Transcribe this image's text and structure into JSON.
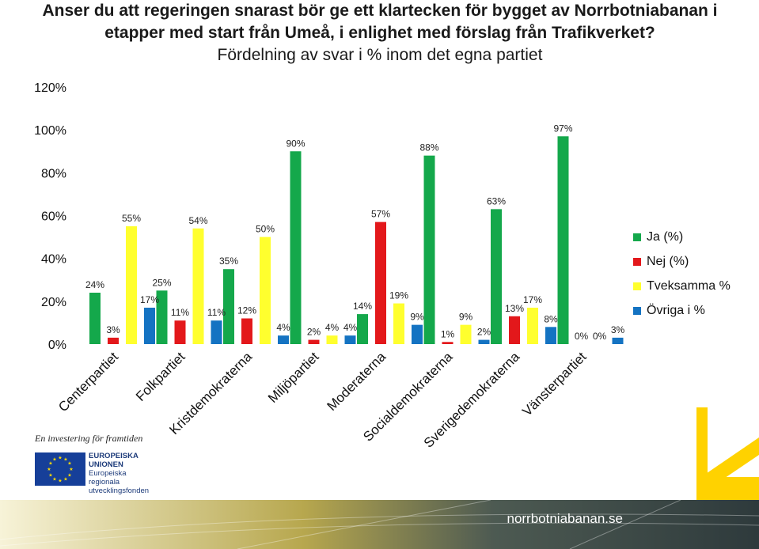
{
  "chart_data": {
    "type": "bar",
    "title": "Anser du att regeringen snarast bör ge ett klartecken för bygget av Norrbotniabanan i etapper med start från Umeå, i enlighet med förslag från Trafikverket?",
    "subtitle": "Fördelning av svar i % inom det egna partiet",
    "categories": [
      "Centerpartiet",
      "Folkpartiet",
      "Kristdemokraterna",
      "Miljöpartiet",
      "Moderaterna",
      "Socialdemokraterna",
      "Sverigedemokraterna",
      "Vänsterpartiet"
    ],
    "series": [
      {
        "name": "Ja (%)",
        "color": "#14a84b",
        "values": [
          24,
          25,
          35,
          90,
          14,
          88,
          63,
          97
        ]
      },
      {
        "name": "Nej (%)",
        "color": "#e3181b",
        "values": [
          3,
          11,
          12,
          2,
          57,
          1,
          13,
          0
        ]
      },
      {
        "name": "Tveksamma %",
        "color": "#ffff2e",
        "values": [
          55,
          54,
          50,
          4,
          19,
          9,
          17,
          0
        ]
      },
      {
        "name": "Övriga i %",
        "color": "#1473c2",
        "values": [
          17,
          11,
          4,
          4,
          9,
          2,
          8,
          3
        ]
      }
    ],
    "ylim": [
      0,
      120
    ],
    "yticks": [
      0,
      20,
      40,
      60,
      80,
      100,
      120
    ],
    "ytick_labels": [
      "0%",
      "20%",
      "40%",
      "60%",
      "80%",
      "100%",
      "120%"
    ],
    "xlabel": "",
    "ylabel": "",
    "grid": false,
    "legend_position": "right"
  },
  "branding": {
    "eu_tagline": "En investering för framtiden",
    "eu_line1": "EUROPEISKA",
    "eu_line2": "UNIONEN",
    "eu_line3": "Europeiska",
    "eu_line4": "regionala",
    "eu_line5": "utvecklingsfonden",
    "footer_url": "norrbotniabanan.se",
    "eu_blue": "#163f99",
    "eu_gold": "#ffdd00",
    "chevron_color": "#ffd200"
  }
}
